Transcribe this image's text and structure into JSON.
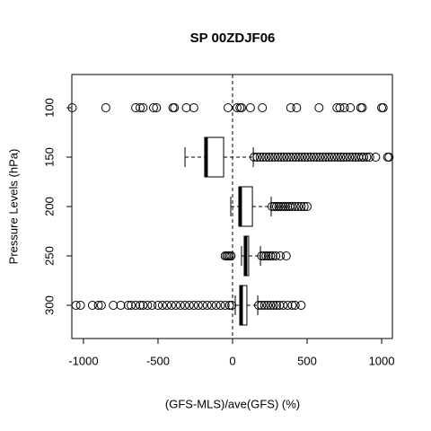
{
  "chart_data": {
    "type": "boxplot",
    "orientation": "horizontal",
    "title": "SP 00ZDJF06",
    "x_label": "(GFS-MLS)/ave(GFS) (%)",
    "y_label": "Pressure Levels (hPa)",
    "categories": [
      "100",
      "150",
      "200",
      "250",
      "300"
    ],
    "xlim": [
      -1078,
      1072
    ],
    "xticks": [
      -1000,
      -500,
      0,
      500,
      1000
    ],
    "ref_line": 0,
    "groups": [
      {
        "low": null,
        "q1": null,
        "median": null,
        "q3": null,
        "high": null,
        "outliers": [
          -1075,
          -850,
          -650,
          -620,
          -600,
          -530,
          -510,
          -400,
          -390,
          -310,
          -260,
          -30,
          30,
          50,
          60,
          120,
          200,
          390,
          430,
          580,
          700,
          720,
          750,
          790,
          860,
          870,
          1000,
          1010
        ]
      },
      {
        "low": -319,
        "q1": -187,
        "median": -175,
        "q3": -60,
        "high": 139,
        "outliers": [
          145,
          165,
          185,
          205,
          225,
          245,
          265,
          285,
          305,
          325,
          345,
          365,
          385,
          405,
          425,
          445,
          465,
          485,
          505,
          525,
          545,
          565,
          585,
          605,
          625,
          645,
          665,
          685,
          705,
          725,
          745,
          765,
          785,
          805,
          825,
          845,
          865,
          880,
          900,
          920,
          960,
          1040,
          1050
        ]
      },
      {
        "low": -12,
        "q1": 42,
        "median": 54,
        "q3": 133,
        "high": 259,
        "outliers": [
          265,
          280,
          295,
          310,
          325,
          340,
          355,
          370,
          385,
          400,
          420,
          440,
          460,
          480,
          500
        ]
      },
      {
        "low": 60,
        "q1": 78,
        "median": 90,
        "q3": 108,
        "high": 187,
        "outliers": [
          -50,
          -40,
          -30,
          -20,
          -10,
          195,
          210,
          225,
          240,
          255,
          270,
          290,
          320,
          360
        ]
      },
      {
        "low": 18,
        "q1": 48,
        "median": 60,
        "q3": 96,
        "high": 169,
        "outliers": [
          -1050,
          -1020,
          -940,
          -900,
          -880,
          -800,
          -750,
          -700,
          -680,
          -650,
          -620,
          -600,
          -570,
          -540,
          -500,
          -470,
          -440,
          -410,
          -380,
          -350,
          -320,
          -290,
          -260,
          -230,
          -200,
          -170,
          -140,
          -110,
          -80,
          -50,
          -20,
          -5,
          175,
          195,
          215,
          235,
          255,
          275,
          295,
          315,
          340,
          370,
          400,
          420,
          460
        ]
      }
    ]
  }
}
